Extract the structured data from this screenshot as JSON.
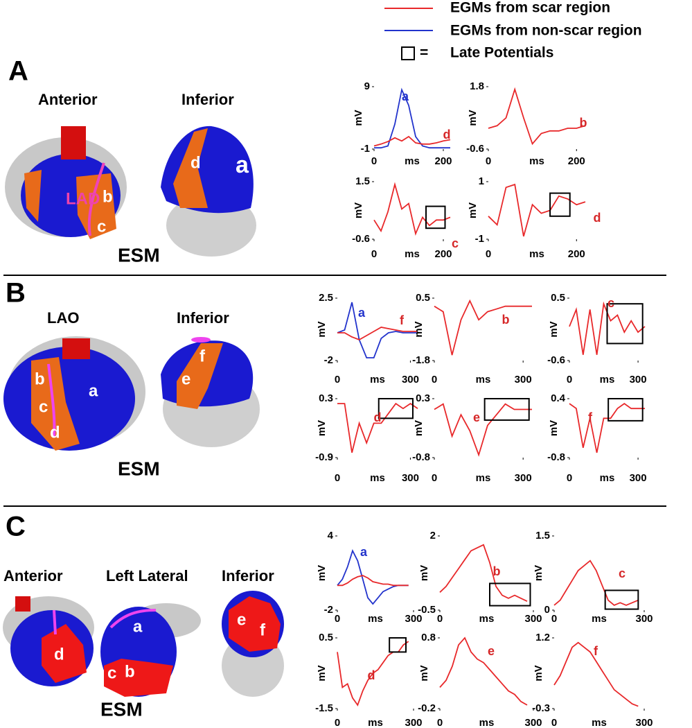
{
  "legend": [
    {
      "text": "EGMs from scar region",
      "color": "#e8282a"
    },
    {
      "text": "EGMs from non-scar region",
      "color": "#2233cc"
    },
    {
      "prefix": "=",
      "text": "Late Potentials"
    }
  ],
  "panels": [
    {
      "label": "A",
      "views": [
        "Anterior",
        "Inferior"
      ],
      "map_labels": [
        "LAD",
        "b",
        "c",
        "d",
        "a"
      ],
      "caption": "ESM"
    },
    {
      "label": "B",
      "views": [
        "LAO",
        "Inferior"
      ],
      "map_labels": [
        "b",
        "c",
        "d",
        "a",
        "e",
        "f"
      ],
      "caption": "ESM"
    },
    {
      "label": "C",
      "views": [
        "Anterior",
        "Left Lateral",
        "Inferior"
      ],
      "map_labels": [
        "d",
        "a",
        "c",
        "b",
        "e",
        "f"
      ],
      "caption": "ESM"
    }
  ],
  "chart_data": [
    {
      "type": "line",
      "ylabel": "mV",
      "xlabel": "ms",
      "xlim": [
        0,
        220
      ],
      "xticks": [
        0,
        200
      ],
      "ylim": [
        -1,
        9
      ],
      "yticks": [
        -1,
        9
      ],
      "x": [
        0,
        20,
        40,
        60,
        80,
        100,
        120,
        140,
        160,
        180,
        200,
        220
      ],
      "series": [
        {
          "color": "#2233cc",
          "values": [
            -0.8,
            -0.8,
            -0.5,
            3,
            8.5,
            6,
            1,
            -0.5,
            -0.8,
            -0.8,
            -0.8,
            -0.8
          ]
        },
        {
          "color": "#e8282a",
          "values": [
            -0.5,
            -0.2,
            0.2,
            0.8,
            0.3,
            1,
            0,
            -0.2,
            -0.2,
            0,
            0.3,
            0.5
          ]
        }
      ],
      "annotations": [
        {
          "text": "a",
          "color": "#2233cc"
        },
        {
          "text": "d",
          "color": "#d62728"
        }
      ]
    },
    {
      "type": "line",
      "ylabel": "mV",
      "xlabel": "ms",
      "xlim": [
        0,
        220
      ],
      "xticks": [
        0,
        200
      ],
      "ylim": [
        -0.6,
        1.8
      ],
      "yticks": [
        -0.6,
        1.8
      ],
      "x": [
        0,
        20,
        40,
        60,
        80,
        100,
        120,
        140,
        160,
        180,
        200,
        220
      ],
      "series": [
        {
          "color": "#e8282a",
          "values": [
            0.2,
            0.3,
            0.6,
            1.7,
            0.6,
            -0.4,
            0,
            0.1,
            0.1,
            0.2,
            0.2,
            0.3
          ]
        }
      ],
      "annotations": [
        {
          "text": "b",
          "color": "#d62728"
        }
      ]
    },
    {
      "type": "line",
      "ylabel": "mV",
      "xlabel": "ms",
      "xlim": [
        0,
        220
      ],
      "xticks": [
        0,
        200
      ],
      "ylim": [
        -0.6,
        1.5
      ],
      "yticks": [
        -0.6,
        1.5
      ],
      "x": [
        0,
        20,
        40,
        60,
        80,
        100,
        120,
        140,
        160,
        180,
        200,
        220
      ],
      "series": [
        {
          "color": "#e8282a",
          "values": [
            0.1,
            -0.3,
            0.4,
            1.4,
            0.5,
            0.7,
            -0.4,
            0.2,
            -0.1,
            0.1,
            0.1,
            0.2
          ]
        }
      ],
      "annotations": [
        {
          "text": "c",
          "color": "#d62728"
        }
      ],
      "late_potential_box": {
        "x": [
          150,
          205
        ],
        "y": [
          -0.2,
          0.6
        ]
      }
    },
    {
      "type": "line",
      "ylabel": "mV",
      "xlabel": "ms",
      "xlim": [
        0,
        220
      ],
      "xticks": [
        0,
        200
      ],
      "ylim": [
        -1,
        1
      ],
      "yticks": [
        -1,
        1
      ],
      "x": [
        0,
        20,
        40,
        60,
        80,
        100,
        120,
        140,
        160,
        180,
        200,
        220
      ],
      "series": [
        {
          "color": "#e8282a",
          "values": [
            -0.2,
            -0.5,
            0.8,
            0.9,
            -0.9,
            0.2,
            -0.1,
            0,
            0.5,
            0.4,
            0.2,
            0.3
          ]
        }
      ],
      "annotations": [
        {
          "text": "d",
          "color": "#d62728"
        }
      ],
      "late_potential_box": {
        "x": [
          140,
          185
        ],
        "y": [
          -0.2,
          0.6
        ]
      }
    },
    {
      "type": "line",
      "ylabel": "mV",
      "xlabel": "ms",
      "xlim": [
        0,
        330
      ],
      "xticks": [
        0,
        300
      ],
      "ylim": [
        -2,
        2.5
      ],
      "yticks": [
        -2,
        2.5
      ],
      "x": [
        0,
        30,
        60,
        90,
        120,
        150,
        180,
        210,
        240,
        270,
        300,
        330
      ],
      "series": [
        {
          "color": "#2233cc",
          "values": [
            0,
            0.2,
            2.2,
            -0.5,
            -1.8,
            -1.8,
            -0.4,
            0,
            0.1,
            0,
            0,
            0
          ]
        },
        {
          "color": "#e8282a",
          "values": [
            0,
            0,
            -0.3,
            -0.5,
            -0.2,
            0.1,
            0.4,
            0.3,
            0.2,
            0.1,
            0.1,
            0.1
          ]
        }
      ],
      "annotations": [
        {
          "text": "a",
          "color": "#2233cc"
        },
        {
          "text": "f",
          "color": "#d62728"
        }
      ]
    },
    {
      "type": "line",
      "ylabel": "mV",
      "xlabel": "ms",
      "xlim": [
        0,
        330
      ],
      "xticks": [
        0,
        300
      ],
      "ylim": [
        -1.8,
        0.5
      ],
      "yticks": [
        -1.8,
        0.5
      ],
      "x": [
        0,
        30,
        60,
        90,
        120,
        150,
        180,
        210,
        240,
        270,
        300,
        330
      ],
      "series": [
        {
          "color": "#e8282a",
          "values": [
            0.2,
            0,
            -1.6,
            -0.3,
            0.4,
            -0.3,
            0,
            0.1,
            0.2,
            0.2,
            0.2,
            0.2
          ]
        }
      ],
      "annotations": [
        {
          "text": "b",
          "color": "#d62728"
        }
      ]
    },
    {
      "type": "line",
      "ylabel": "mV",
      "xlabel": "ms",
      "xlim": [
        0,
        330
      ],
      "xticks": [
        0,
        300
      ],
      "ylim": [
        -0.6,
        0.5
      ],
      "yticks": [
        -0.6,
        0.5
      ],
      "x": [
        0,
        30,
        60,
        90,
        120,
        150,
        180,
        210,
        240,
        270,
        300,
        330
      ],
      "series": [
        {
          "color": "#e8282a",
          "values": [
            0,
            0.3,
            -0.5,
            0.3,
            -0.5,
            0.4,
            0.1,
            0.2,
            -0.1,
            0.1,
            -0.1,
            0
          ]
        }
      ],
      "annotations": [
        {
          "text": "c",
          "color": "#d62728"
        }
      ],
      "late_potential_box": {
        "x": [
          165,
          320
        ],
        "y": [
          -0.3,
          0.4
        ]
      }
    },
    {
      "type": "line",
      "ylabel": "mV",
      "xlabel": "ms",
      "xlim": [
        0,
        330
      ],
      "xticks": [
        0,
        300
      ],
      "ylim": [
        -0.9,
        0.3
      ],
      "yticks": [
        -0.9,
        0.3
      ],
      "x": [
        0,
        30,
        60,
        90,
        120,
        150,
        180,
        210,
        240,
        270,
        300,
        330
      ],
      "series": [
        {
          "color": "#e8282a",
          "values": [
            0.2,
            0.2,
            -0.8,
            -0.2,
            -0.6,
            -0.2,
            -0.2,
            0,
            0.2,
            0.1,
            0.2,
            0.1
          ]
        }
      ],
      "annotations": [
        {
          "text": "d",
          "color": "#d62728"
        }
      ],
      "late_potential_box": {
        "x": [
          170,
          310
        ],
        "y": [
          -0.1,
          0.3
        ]
      }
    },
    {
      "type": "line",
      "ylabel": "mV",
      "xlabel": "ms",
      "xlim": [
        0,
        330
      ],
      "xticks": [
        0,
        300
      ],
      "ylim": [
        -0.8,
        0.3
      ],
      "yticks": [
        -0.8,
        0.3
      ],
      "x": [
        0,
        30,
        60,
        90,
        120,
        150,
        180,
        210,
        240,
        270,
        300,
        330
      ],
      "series": [
        {
          "color": "#e8282a",
          "values": [
            0.1,
            0.2,
            -0.4,
            0,
            -0.3,
            -0.75,
            -0.2,
            0,
            0.2,
            0.1,
            0.1,
            0.1
          ]
        }
      ],
      "annotations": [
        {
          "text": "e",
          "color": "#d62728"
        }
      ],
      "late_potential_box": {
        "x": [
          170,
          320
        ],
        "y": [
          -0.1,
          0.3
        ]
      }
    },
    {
      "type": "line",
      "ylabel": "mV",
      "xlabel": "ms",
      "xlim": [
        0,
        330
      ],
      "xticks": [
        0,
        300
      ],
      "ylim": [
        -0.8,
        0.4
      ],
      "yticks": [
        -0.8,
        0.4
      ],
      "x": [
        0,
        30,
        60,
        90,
        120,
        150,
        180,
        210,
        240,
        270,
        300,
        330
      ],
      "series": [
        {
          "color": "#e8282a",
          "values": [
            0.3,
            0.2,
            -0.6,
            0,
            -0.7,
            0,
            0,
            0.2,
            0.3,
            0.2,
            0.2,
            0.2
          ]
        }
      ],
      "annotations": [
        {
          "text": "f",
          "color": "#d62728"
        }
      ],
      "late_potential_box": {
        "x": [
          170,
          320
        ],
        "y": [
          -0.05,
          0.4
        ]
      }
    },
    {
      "type": "line",
      "ylabel": "mV",
      "xlabel": "ms",
      "xlim": [
        0,
        300
      ],
      "xticks": [
        0,
        300
      ],
      "ylim": [
        -2,
        4
      ],
      "yticks": [
        -2,
        4
      ],
      "x": [
        0,
        20,
        40,
        60,
        80,
        100,
        120,
        140,
        160,
        180,
        200,
        220,
        240,
        260,
        280
      ],
      "series": [
        {
          "color": "#2233cc",
          "values": [
            0,
            0.5,
            1.5,
            2.8,
            2,
            0.5,
            -1,
            -1.5,
            -1,
            -0.5,
            -0.3,
            -0.1,
            0,
            0,
            0
          ]
        },
        {
          "color": "#e8282a",
          "values": [
            0,
            0,
            0.2,
            0.5,
            0.7,
            0.8,
            0.6,
            0.3,
            0.2,
            0.1,
            0.1,
            0,
            0,
            0,
            0
          ]
        }
      ],
      "annotations": [
        {
          "text": "a",
          "color": "#2233cc"
        }
      ]
    },
    {
      "type": "line",
      "ylabel": "mV",
      "xlabel": "ms",
      "xlim": [
        0,
        300
      ],
      "xticks": [
        0,
        300
      ],
      "ylim": [
        -0.5,
        2
      ],
      "yticks": [
        -0.5,
        2
      ],
      "x": [
        0,
        20,
        40,
        60,
        80,
        100,
        120,
        140,
        160,
        180,
        200,
        220,
        240,
        260,
        280
      ],
      "series": [
        {
          "color": "#e8282a",
          "values": [
            0.1,
            0.3,
            0.6,
            0.9,
            1.2,
            1.5,
            1.6,
            1.7,
            1.1,
            0.3,
            0,
            -0.1,
            0,
            -0.1,
            -0.2
          ]
        }
      ],
      "annotations": [
        {
          "text": "b",
          "color": "#d62728"
        }
      ],
      "late_potential_box": {
        "x": [
          160,
          290
        ],
        "y": [
          -0.35,
          0.4
        ]
      }
    },
    {
      "type": "line",
      "ylabel": "mV",
      "xlabel": "ms",
      "xlim": [
        0,
        300
      ],
      "xticks": [
        0,
        300
      ],
      "ylim": [
        0,
        1.5
      ],
      "yticks": [
        0,
        1.5
      ],
      "x": [
        0,
        20,
        40,
        60,
        80,
        100,
        120,
        140,
        160,
        180,
        200,
        220,
        240,
        260,
        280
      ],
      "series": [
        {
          "color": "#e8282a",
          "values": [
            0.1,
            0.2,
            0.4,
            0.6,
            0.8,
            0.9,
            1.0,
            0.8,
            0.5,
            0.2,
            0.1,
            0.15,
            0.1,
            0.15,
            0.2
          ]
        }
      ],
      "annotations": [
        {
          "text": "c",
          "color": "#d62728"
        }
      ],
      "late_potential_box": {
        "x": [
          170,
          280
        ],
        "y": [
          0.02,
          0.4
        ]
      }
    },
    {
      "type": "line",
      "ylabel": "mV",
      "xlabel": "ms",
      "xlim": [
        0,
        300
      ],
      "xticks": [
        0,
        300
      ],
      "ylim": [
        -1.5,
        0.5
      ],
      "yticks": [
        -1.5,
        0.5
      ],
      "x": [
        0,
        20,
        40,
        60,
        80,
        100,
        120,
        140,
        160,
        180,
        200,
        220,
        240,
        260,
        280
      ],
      "series": [
        {
          "color": "#e8282a",
          "values": [
            0.1,
            -0.9,
            -0.8,
            -1.2,
            -1.4,
            -1,
            -0.7,
            -0.5,
            -0.4,
            -0.2,
            0,
            0.1,
            0.1,
            0.3,
            0.4
          ]
        }
      ],
      "annotations": [
        {
          "text": "d",
          "color": "#d62728"
        }
      ],
      "late_potential_box": {
        "x": [
          205,
          270
        ],
        "y": [
          0.1,
          0.5
        ]
      }
    },
    {
      "type": "line",
      "ylabel": "mV",
      "xlabel": "ms",
      "xlim": [
        0,
        300
      ],
      "xticks": [
        0,
        300
      ],
      "ylim": [
        -0.2,
        0.8
      ],
      "yticks": [
        -0.2,
        0.8
      ],
      "x": [
        0,
        20,
        40,
        60,
        80,
        100,
        120,
        140,
        160,
        180,
        200,
        220,
        240,
        260,
        280
      ],
      "series": [
        {
          "color": "#e8282a",
          "values": [
            0.1,
            0.2,
            0.4,
            0.7,
            0.8,
            0.6,
            0.5,
            0.45,
            0.35,
            0.25,
            0.15,
            0.05,
            0,
            -0.1,
            -0.15
          ]
        }
      ],
      "annotations": [
        {
          "text": "e",
          "color": "#d62728"
        }
      ]
    },
    {
      "type": "line",
      "ylabel": "mV",
      "xlabel": "ms",
      "xlim": [
        0,
        300
      ],
      "xticks": [
        0,
        300
      ],
      "ylim": [
        -0.3,
        1.2
      ],
      "yticks": [
        -0.3,
        1.2
      ],
      "x": [
        0,
        20,
        40,
        60,
        80,
        100,
        120,
        140,
        160,
        180,
        200,
        220,
        240,
        260,
        280
      ],
      "series": [
        {
          "color": "#e8282a",
          "values": [
            0.2,
            0.4,
            0.7,
            1.0,
            1.1,
            1.0,
            0.9,
            0.7,
            0.5,
            0.3,
            0.1,
            0,
            -0.1,
            -0.2,
            -0.25
          ]
        }
      ],
      "annotations": [
        {
          "text": "f",
          "color": "#d62728"
        }
      ]
    }
  ]
}
